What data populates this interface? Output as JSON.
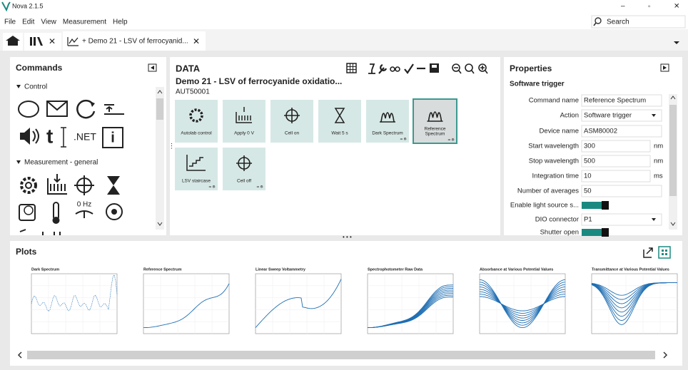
{
  "window": {
    "title": "Nova 2.1.5"
  },
  "menu": [
    "File",
    "Edit",
    "View",
    "Measurement",
    "Help"
  ],
  "search": "Search",
  "tab": "+ Demo 21 - LSV of ferrocyanid...",
  "commands": {
    "title": "Commands",
    "groups": [
      "Control",
      "Measurement - general"
    ],
    "icon_labels": [
      "t",
      ".NET",
      "i",
      "0 Hz"
    ]
  },
  "data_panel": {
    "title": "DATA",
    "procedure": "Demo 21 - LSV of ferrocyanide oxidatio...",
    "instrument": "AUT50001",
    "tiles": [
      "Autolab control",
      "Apply 0 V",
      "Cell on",
      "Wait 5 s",
      "Dark Spectrum",
      "Reference Spectrum",
      "LSV staircase",
      "Cell off"
    ]
  },
  "properties": {
    "title": "Properties",
    "section": "Software trigger",
    "rows": [
      {
        "label": "Command name",
        "value": "Reference Spectrum"
      },
      {
        "label": "Action",
        "value": "Software trigger"
      },
      {
        "label": "Device name",
        "value": "ASM80002"
      },
      {
        "label": "Start wavelength",
        "value": "300",
        "unit": "nm"
      },
      {
        "label": "Stop wavelength",
        "value": "500",
        "unit": "nm"
      },
      {
        "label": "Integration time",
        "value": "10",
        "unit": "ms"
      },
      {
        "label": "Number of averages",
        "value": "50"
      },
      {
        "label": "Enable light source s..."
      },
      {
        "label": "DIO connector",
        "value": "P1"
      },
      {
        "label": "Shutter open"
      }
    ]
  },
  "plots": {
    "title": "Plots",
    "thumbnails": [
      "Dark Spectrum",
      "Reference Spectrum",
      "Linear Sweep Voltammetry",
      "Spectrophotometer Raw Data",
      "Absorbance at Various Potential Values",
      "Transmittance at Various Potential Values"
    ]
  }
}
